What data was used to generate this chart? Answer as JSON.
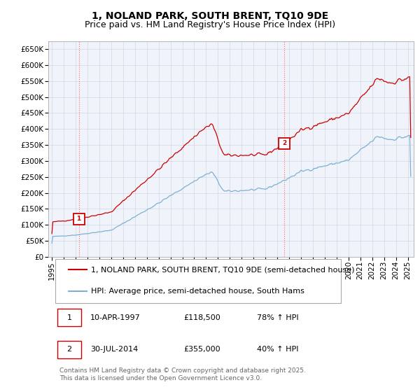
{
  "title": "1, NOLAND PARK, SOUTH BRENT, TQ10 9DE",
  "subtitle": "Price paid vs. HM Land Registry's House Price Index (HPI)",
  "ylabel_ticks": [
    "£0",
    "£50K",
    "£100K",
    "£150K",
    "£200K",
    "£250K",
    "£300K",
    "£350K",
    "£400K",
    "£450K",
    "£500K",
    "£550K",
    "£600K",
    "£650K"
  ],
  "ytick_values": [
    0,
    50000,
    100000,
    150000,
    200000,
    250000,
    300000,
    350000,
    400000,
    450000,
    500000,
    550000,
    600000,
    650000
  ],
  "ylim": [
    0,
    675000
  ],
  "xlim_start": 1994.7,
  "xlim_end": 2025.5,
  "sale1_x": 1997.27,
  "sale1_y": 118500,
  "sale1_label": "1",
  "sale2_x": 2014.58,
  "sale2_y": 355000,
  "sale2_label": "2",
  "red_line_color": "#cc0000",
  "blue_line_color": "#7eb0d4",
  "vline_color": "#ff6666",
  "grid_color": "#d0d8e8",
  "background_color": "#ffffff",
  "chart_bg_color": "#f0f4fa",
  "legend1_text": "1, NOLAND PARK, SOUTH BRENT, TQ10 9DE (semi-detached house)",
  "legend2_text": "HPI: Average price, semi-detached house, South Hams",
  "annotation1": "10-APR-1997",
  "annotation1_price": "£118,500",
  "annotation1_hpi": "78% ↑ HPI",
  "annotation2": "30-JUL-2014",
  "annotation2_price": "£355,000",
  "annotation2_hpi": "40% ↑ HPI",
  "footnote": "Contains HM Land Registry data © Crown copyright and database right 2025.\nThis data is licensed under the Open Government Licence v3.0.",
  "title_fontsize": 10,
  "subtitle_fontsize": 9,
  "tick_fontsize": 7.5,
  "legend_fontsize": 8,
  "annotation_fontsize": 8,
  "footnote_fontsize": 6.5
}
